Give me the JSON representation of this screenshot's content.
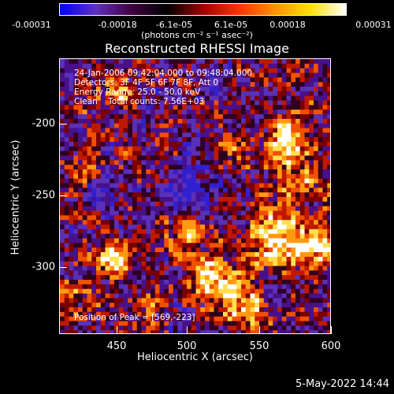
{
  "colorbar": {
    "ticks": [
      "-0.00031",
      "-0.00018",
      "-6.1e-05",
      "6.1e-05",
      "0.00018",
      "0.00031"
    ],
    "unit_label": "(photons cm⁻² s⁻¹ asec⁻²)",
    "colors": [
      "#0000ff",
      "#6030c0",
      "#400040",
      "#000000",
      "#a00000",
      "#ff3000",
      "#ff9000",
      "#ffe000",
      "#ffffff"
    ]
  },
  "info": {
    "line1": "24-Jan-2006 09:42:04.000 to 09:48:04.000",
    "line2": "Detectors: 3F 4F 5F 6F 7F 8F, Att 0",
    "line3": "Energy Range: 25.0 - 50.0 keV",
    "line4": "Clean    Total counts: 7.56E+03",
    "peak": "Position of Peak = [569,-223]"
  },
  "footer": "5-May-2022 14:44",
  "chart_data": {
    "type": "heatmap",
    "title": "Reconstructed RHESSI Image",
    "xlabel": "Heliocentric X (arcsec)",
    "ylabel": "Heliocentric Y (arcsec)",
    "xlim": [
      412,
      600
    ],
    "ylim": [
      -348,
      -170
    ],
    "x_ticks": [
      "450",
      "500",
      "550",
      "600"
    ],
    "y_ticks": [
      "-200",
      "-250",
      "-300"
    ],
    "value_range": [
      -0.00031,
      0.00031
    ],
    "peak": [
      569,
      -223
    ],
    "grid": false
  }
}
